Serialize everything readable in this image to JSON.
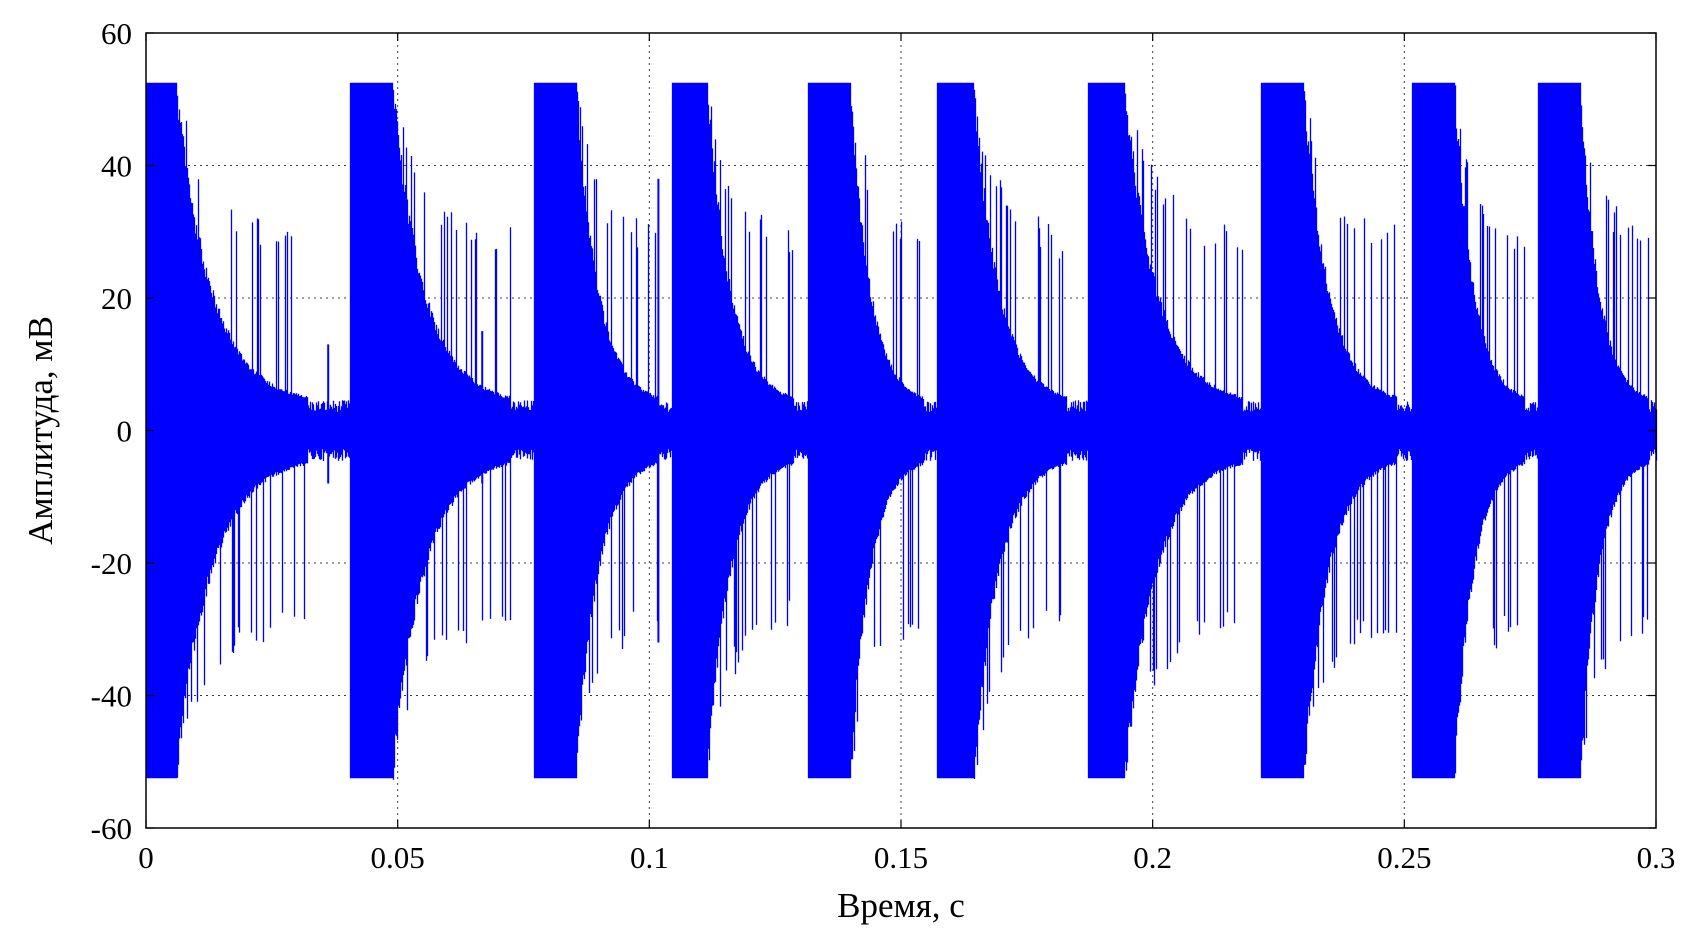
{
  "chart_data": {
    "type": "line",
    "title": "",
    "xlabel": "Время, с",
    "ylabel": "Амплитуда, мВ",
    "xlim": [
      0,
      0.3
    ],
    "ylim": [
      -60,
      60
    ],
    "x_ticks": [
      0,
      0.05,
      0.1,
      0.15,
      0.2,
      0.25,
      0.3
    ],
    "x_tick_labels": [
      "0",
      "0.05",
      "0.1",
      "0.15",
      "0.2",
      "0.25",
      "0.3"
    ],
    "y_ticks": [
      60,
      40,
      20,
      0,
      -20,
      -40,
      -60
    ],
    "y_tick_labels": [
      "60",
      "40",
      "20",
      "0",
      "-20",
      "-40",
      "-60"
    ],
    "grid": true,
    "legend": "none",
    "series": [
      {
        "color": "#0000ff",
        "signal": "clipped decaying oscillation bursts",
        "clip_level": [
          -52.5,
          52.5
        ],
        "noise_floor": 4,
        "burst_onsets": [
          0,
          0.0405,
          0.077,
          0.1045,
          0.1315,
          0.157,
          0.187,
          0.2215,
          0.2515,
          0.2765
        ],
        "saturation_durations": [
          0.006,
          0.0085,
          0.0085,
          0.007,
          0.0085,
          0.0075,
          0.0075,
          0.0085,
          0.0085,
          0.0085
        ],
        "decay_to_noise_at": [
          0.035,
          0.075,
          0.1035,
          0.1305,
          0.156,
          0.185,
          0.2205,
          0.2505,
          0.2755,
          0.3
        ],
        "spikes": [
          {
            "x": 0.0362,
            "max": 13,
            "min": -8
          },
          {
            "x": 0.0668,
            "max": 15,
            "min": -8
          },
          {
            "x": 0.1018,
            "max": 38,
            "min": -32
          }
        ]
      }
    ]
  }
}
